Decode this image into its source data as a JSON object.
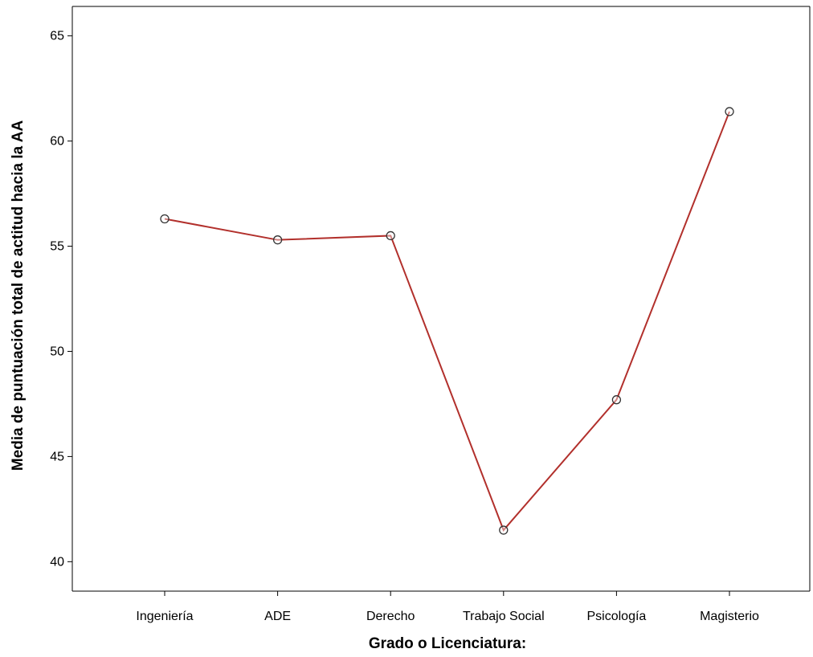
{
  "chart_data": {
    "type": "line",
    "categories": [
      "Ingeniería",
      "ADE",
      "Derecho",
      "Trabajo Social",
      "Psicología",
      "Magisterio"
    ],
    "values": [
      56.3,
      55.3,
      55.5,
      41.5,
      47.7,
      61.4
    ],
    "xlabel": "Grado o Licenciatura:",
    "ylabel": "Media de puntuación total de actitud hacia la AA",
    "ylim": [
      38.6,
      66.4
    ],
    "yticks": [
      40,
      45,
      50,
      55,
      60,
      65
    ],
    "grid": false,
    "line_color": "#b2302c",
    "marker": "hollow-circle"
  }
}
